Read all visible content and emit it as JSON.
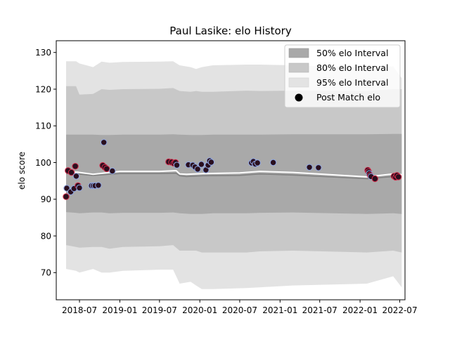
{
  "chart_data": {
    "type": "scatter",
    "title": "Paul Lasike: elo History",
    "xlabel": "",
    "ylabel": "elo score",
    "xlim": [
      "2018-03-17",
      "2022-07-25"
    ],
    "ylim": [
      62.6,
      133.2
    ],
    "x_ticks": [
      "2018-07-01",
      "2019-01-01",
      "2019-07-01",
      "2020-01-01",
      "2020-07-01",
      "2021-01-01",
      "2021-07-01",
      "2022-01-01",
      "2022-07-01"
    ],
    "x_tick_labels": [
      "2018-07",
      "2019-01",
      "2019-07",
      "2020-01",
      "2020-07",
      "2021-01",
      "2021-07",
      "2022-01",
      "2022-07"
    ],
    "y_ticks": [
      70,
      80,
      90,
      100,
      110,
      120,
      130
    ],
    "legend": {
      "placement": "top-right",
      "entries": [
        "50% elo Interval",
        "80% elo Interval",
        "95% elo Interval",
        "Post Match elo"
      ]
    },
    "colors": {
      "band50": "#a9a9a9",
      "band80": "#c8c8c8",
      "band95": "#e3e3e3",
      "mean_line": "#ffffff",
      "median_line": "#808080",
      "point_fill": "#2a0f1e",
      "point_edge_blue": "#8fa8e6",
      "point_edge_red": "#d42a4a"
    },
    "bands": {
      "dates": [
        "2018-05-01",
        "2018-06-15",
        "2018-07-01",
        "2018-09-01",
        "2018-10-10",
        "2018-11-15",
        "2019-01-15",
        "2019-07-01",
        "2019-09-01",
        "2019-10-01",
        "2019-11-20",
        "2019-12-15",
        "2020-01-10",
        "2020-03-01",
        "2020-08-01",
        "2020-10-01",
        "2021-03-01",
        "2022-02-01",
        "2022-06-01",
        "2022-07-10"
      ],
      "lower95": [
        71,
        70.5,
        70,
        71,
        70,
        70,
        70.5,
        70.8,
        70.8,
        67,
        67.5,
        66.5,
        65.5,
        65.5,
        65.8,
        66,
        66.5,
        67,
        69,
        66
      ],
      "lower80": [
        77.5,
        77,
        76.8,
        77,
        77,
        76.5,
        77,
        77.2,
        77.5,
        76,
        76,
        76,
        75.5,
        75.5,
        75.5,
        75.8,
        76,
        75.5,
        76,
        75.5
      ],
      "lower50": [
        86.5,
        86.3,
        86.2,
        86.4,
        86.4,
        86.2,
        86.3,
        86.3,
        86.4,
        86.2,
        86,
        86,
        86,
        86.2,
        86.2,
        86.3,
        86.4,
        86,
        86.2,
        86
      ],
      "upper50": [
        107.6,
        107.6,
        107.6,
        107.6,
        107.5,
        107.5,
        107.6,
        107.6,
        107.7,
        107.6,
        107.5,
        107.5,
        107.5,
        107.6,
        107.6,
        107.6,
        107.7,
        107.7,
        107.8,
        107.8
      ],
      "upper80": [
        120.8,
        120.8,
        118.5,
        118.7,
        120,
        119.8,
        120,
        120.1,
        120.3,
        119.5,
        119.3,
        119.5,
        119.3,
        119.3,
        119.6,
        119.5,
        119.6,
        119.5,
        120,
        120
      ],
      "upper95": [
        127.6,
        127.6,
        127,
        126,
        127.5,
        127.2,
        127.4,
        127.5,
        127.6,
        126.5,
        126,
        125.5,
        126,
        126.5,
        126.7,
        126.7,
        126.5,
        125.8,
        126.2,
        123
      ]
    },
    "mean_line": {
      "dates": [
        "2018-05-01",
        "2018-06-20",
        "2018-09-01",
        "2018-11-15",
        "2019-01-01",
        "2019-07-01",
        "2019-09-15",
        "2019-10-01",
        "2019-11-01",
        "2020-01-15",
        "2020-07-01",
        "2020-10-01",
        "2021-03-01",
        "2022-02-01",
        "2022-06-01",
        "2022-07-10"
      ],
      "values": [
        97.3,
        97.4,
        96.8,
        97.3,
        97.6,
        97.6,
        97.8,
        96.9,
        96.8,
        97,
        97.2,
        97.6,
        97.3,
        96.1,
        96.9,
        96.7
      ]
    },
    "median_line": {
      "dates": [
        "2018-05-01",
        "2018-06-20",
        "2018-09-01",
        "2018-11-15",
        "2019-01-01",
        "2019-07-01",
        "2019-09-15",
        "2019-10-01",
        "2019-11-01",
        "2020-01-15",
        "2020-07-01",
        "2020-10-01",
        "2021-03-01",
        "2022-02-01",
        "2022-06-01",
        "2022-07-10"
      ],
      "values": [
        97.0,
        96.9,
        96.5,
        96.8,
        97.0,
        97.0,
        97.1,
        96.4,
        96.2,
        96.4,
        96.5,
        96.9,
        96.6,
        95.6,
        96.2,
        96.0
      ]
    },
    "points": [
      {
        "x": "2018-05-01",
        "y": 90.7,
        "edge": "red"
      },
      {
        "x": "2018-05-04",
        "y": 93.0,
        "edge": "blue"
      },
      {
        "x": "2018-05-10",
        "y": 97.8,
        "edge": "red"
      },
      {
        "x": "2018-05-22",
        "y": 92.0,
        "edge": "blue"
      },
      {
        "x": "2018-05-25",
        "y": 97.3,
        "edge": "red"
      },
      {
        "x": "2018-06-06",
        "y": 92.9,
        "edge": "blue"
      },
      {
        "x": "2018-06-12",
        "y": 99.0,
        "edge": "red"
      },
      {
        "x": "2018-06-16",
        "y": 96.3,
        "edge": "blue"
      },
      {
        "x": "2018-06-24",
        "y": 93.7,
        "edge": "red"
      },
      {
        "x": "2018-07-01",
        "y": 93.1,
        "edge": "blue"
      },
      {
        "x": "2018-08-25",
        "y": 93.7,
        "edge": "blue"
      },
      {
        "x": "2018-09-02",
        "y": 93.7,
        "edge": "blue"
      },
      {
        "x": "2018-09-10",
        "y": 93.7,
        "edge": "blue"
      },
      {
        "x": "2018-09-25",
        "y": 93.8,
        "edge": "blue"
      },
      {
        "x": "2018-10-15",
        "y": 99.2,
        "edge": "red"
      },
      {
        "x": "2018-10-20",
        "y": 105.5,
        "edge": "blue"
      },
      {
        "x": "2018-10-25",
        "y": 98.7,
        "edge": "red"
      },
      {
        "x": "2018-11-02",
        "y": 98.3,
        "edge": "red"
      },
      {
        "x": "2018-11-28",
        "y": 97.7,
        "edge": "blue"
      },
      {
        "x": "2019-08-12",
        "y": 100.2,
        "edge": "red"
      },
      {
        "x": "2019-08-25",
        "y": 100.1,
        "edge": "red"
      },
      {
        "x": "2019-09-05",
        "y": 99.8,
        "edge": "red"
      },
      {
        "x": "2019-09-12",
        "y": 100.0,
        "edge": "red"
      },
      {
        "x": "2019-09-18",
        "y": 99.3,
        "edge": "blue"
      },
      {
        "x": "2019-11-10",
        "y": 99.4,
        "edge": "blue"
      },
      {
        "x": "2019-11-30",
        "y": 99.3,
        "edge": "blue"
      },
      {
        "x": "2019-12-10",
        "y": 98.8,
        "edge": "blue"
      },
      {
        "x": "2019-12-22",
        "y": 98.2,
        "edge": "blue"
      },
      {
        "x": "2020-01-08",
        "y": 99.5,
        "edge": "blue"
      },
      {
        "x": "2020-01-29",
        "y": 98.0,
        "edge": "blue"
      },
      {
        "x": "2020-02-08",
        "y": 99.3,
        "edge": "blue"
      },
      {
        "x": "2020-02-15",
        "y": 100.5,
        "edge": "blue"
      },
      {
        "x": "2020-02-22",
        "y": 100.1,
        "edge": "blue"
      },
      {
        "x": "2020-08-24",
        "y": 99.9,
        "edge": "blue"
      },
      {
        "x": "2020-09-01",
        "y": 100.3,
        "edge": "blue"
      },
      {
        "x": "2020-09-10",
        "y": 99.6,
        "edge": "blue"
      },
      {
        "x": "2020-09-20",
        "y": 99.9,
        "edge": "blue"
      },
      {
        "x": "2020-12-01",
        "y": 100.0,
        "edge": "blue"
      },
      {
        "x": "2021-05-15",
        "y": 98.7,
        "edge": "blue"
      },
      {
        "x": "2021-06-25",
        "y": 98.6,
        "edge": "blue"
      },
      {
        "x": "2022-02-05",
        "y": 97.9,
        "edge": "red"
      },
      {
        "x": "2022-02-09",
        "y": 97.5,
        "edge": "red"
      },
      {
        "x": "2022-02-12",
        "y": 97.0,
        "edge": "blue"
      },
      {
        "x": "2022-02-16",
        "y": 96.5,
        "edge": "red"
      },
      {
        "x": "2022-02-20",
        "y": 96.2,
        "edge": "blue"
      },
      {
        "x": "2022-03-10",
        "y": 95.6,
        "edge": "red"
      },
      {
        "x": "2022-06-05",
        "y": 96.3,
        "edge": "red"
      },
      {
        "x": "2022-06-12",
        "y": 96.0,
        "edge": "red"
      },
      {
        "x": "2022-06-18",
        "y": 96.5,
        "edge": "red"
      },
      {
        "x": "2022-06-25",
        "y": 96.1,
        "edge": "red"
      }
    ]
  }
}
